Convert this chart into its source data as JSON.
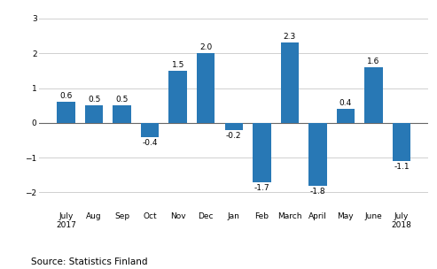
{
  "categories": [
    "July\n2017",
    "Aug",
    "Sep",
    "Oct",
    "Nov",
    "Dec",
    "Jan",
    "Feb",
    "March",
    "April",
    "May",
    "June",
    "July\n2018"
  ],
  "values": [
    0.6,
    0.5,
    0.5,
    -0.4,
    1.5,
    2.0,
    -0.2,
    -1.7,
    2.3,
    -1.8,
    0.4,
    1.6,
    -1.1
  ],
  "bar_color": "#2878b5",
  "background_color": "#ffffff",
  "ylim": [
    -2.5,
    3.3
  ],
  "yticks": [
    -2,
    -1,
    0,
    1,
    2,
    3
  ],
  "source_text": "Source: Statistics Finland",
  "label_fontsize": 6.5,
  "tick_fontsize": 6.5,
  "source_fontsize": 7.5,
  "grid_color": "#d0d0d0",
  "zero_line_color": "#666666",
  "bar_width": 0.65
}
